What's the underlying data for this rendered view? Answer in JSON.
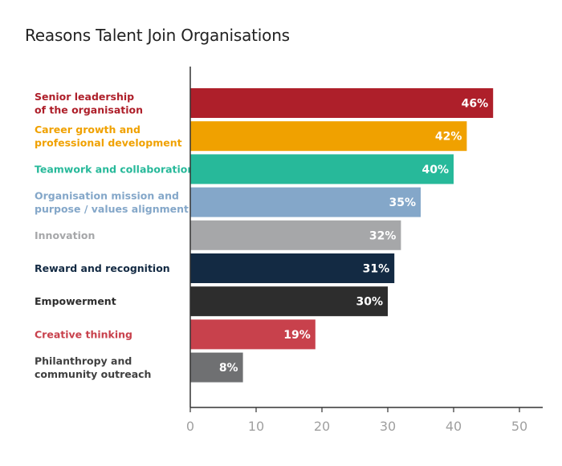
{
  "chart_data": {
    "type": "bar",
    "orientation": "horizontal",
    "title": "Reasons Talent Join Organisations",
    "categories": [
      "Senior leadership\nof the organisation",
      "Career growth and\nprofessional development",
      "Teamwork and collaboration",
      "Organisation mission and\npurpose / values alignment",
      "Innovation",
      "Reward and recognition",
      "Empowerment",
      "Creative thinking",
      "Philanthropy and\ncommunity outreach"
    ],
    "values": [
      46,
      42,
      40,
      35,
      32,
      31,
      30,
      19,
      8
    ],
    "value_labels": [
      "46%",
      "42%",
      "40%",
      "35%",
      "32%",
      "31%",
      "30%",
      "19%",
      "8%"
    ],
    "colors": [
      "#ae1f2a",
      "#f0a100",
      "#27b99a",
      "#84a7c9",
      "#a6a7a9",
      "#132a43",
      "#2d2d2d",
      "#c8414c",
      "#6f7072"
    ],
    "label_colors": [
      "#ae1f2a",
      "#f0a100",
      "#27b99a",
      "#84a7c9",
      "#a6a7a9",
      "#132a43",
      "#2d2d2d",
      "#c8414c",
      "#404040"
    ],
    "xlim": [
      0,
      52
    ],
    "xticks": [
      0,
      10,
      20,
      30,
      40,
      50
    ],
    "xtick_labels": [
      "0",
      "10",
      "20",
      "30",
      "40",
      "50"
    ],
    "grid": false
  }
}
